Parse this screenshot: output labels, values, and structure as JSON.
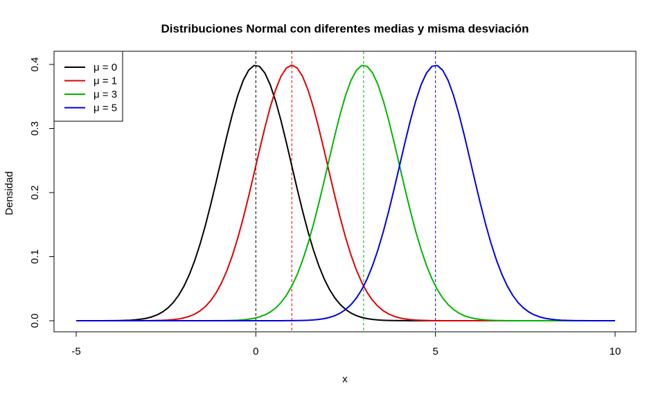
{
  "chart_data": {
    "type": "line",
    "title": "Distribuciones Normal con diferentes medias y misma desviación",
    "xlabel": "x",
    "ylabel": "Densidad",
    "xlim": [
      -5,
      10
    ],
    "ylim": [
      0,
      0.4
    ],
    "x_ticks": [
      -5,
      0,
      5,
      10
    ],
    "y_ticks": [
      0.0,
      0.1,
      0.2,
      0.3,
      0.4
    ],
    "x_tick_labels": [
      "-5",
      "0",
      "5",
      "10"
    ],
    "y_tick_labels": [
      "0.0",
      "0.1",
      "0.2",
      "0.3",
      "0.4"
    ],
    "sd": 1,
    "x_step": 0.15,
    "legend_position": "top-left",
    "grid": false,
    "series": [
      {
        "name": "μ = 0",
        "mu": 0,
        "color": "#000000"
      },
      {
        "name": "μ = 1",
        "mu": 1,
        "color": "#df0000"
      },
      {
        "name": "μ = 3",
        "mu": 3,
        "color": "#00b400"
      },
      {
        "name": "μ = 5",
        "mu": 5,
        "color": "#0000e0"
      }
    ],
    "mean_lines": [
      {
        "x": 0,
        "color": "#000000"
      },
      {
        "x": 1,
        "color": "#df0000"
      },
      {
        "x": 3,
        "color": "#00b400"
      },
      {
        "x": 5,
        "color": "#0000e0"
      }
    ]
  }
}
